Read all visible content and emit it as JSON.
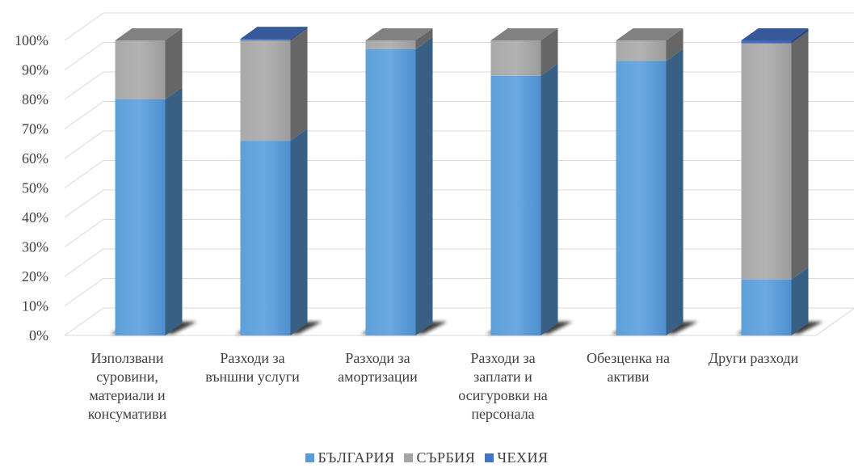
{
  "chart_data": {
    "type": "bar",
    "stacked": true,
    "percent": true,
    "three_d": true,
    "categories": [
      "Използвани суровини, материали и консумативи",
      "Разходи за външни услуги",
      "Разходи за амортизации",
      "Разходи за заплати и осигуровки на персонала",
      "Обезценка на активи",
      "Други разходи"
    ],
    "category_lines": [
      [
        "Използвани",
        "суровини,",
        "материали и",
        "консумативи"
      ],
      [
        "Разходи за",
        "външни услуги"
      ],
      [
        "Разходи за",
        "амортизации"
      ],
      [
        "Разходи за",
        "заплати и",
        "осигуровки на",
        "персонала"
      ],
      [
        "Обезценка на",
        "активи"
      ],
      [
        "Други разходи"
      ]
    ],
    "series": [
      {
        "name": "БЪЛГАРИЯ",
        "color": "#5B9BD5",
        "values": [
          80,
          66,
          97,
          88,
          93,
          19
        ]
      },
      {
        "name": "СЪРБИЯ",
        "color": "#A5A5A5",
        "values": [
          20,
          34,
          3,
          12,
          7,
          80
        ]
      },
      {
        "name": "ЧЕХИЯ",
        "color": "#4472C4",
        "values": [
          0,
          0.5,
          0,
          0,
          0,
          1
        ]
      }
    ],
    "yticks": [
      "0%",
      "10%",
      "20%",
      "30%",
      "40%",
      "50%",
      "60%",
      "70%",
      "80%",
      "90%",
      "100%"
    ],
    "ylim": [
      0,
      100
    ],
    "grid": true,
    "legend_position": "bottom"
  }
}
